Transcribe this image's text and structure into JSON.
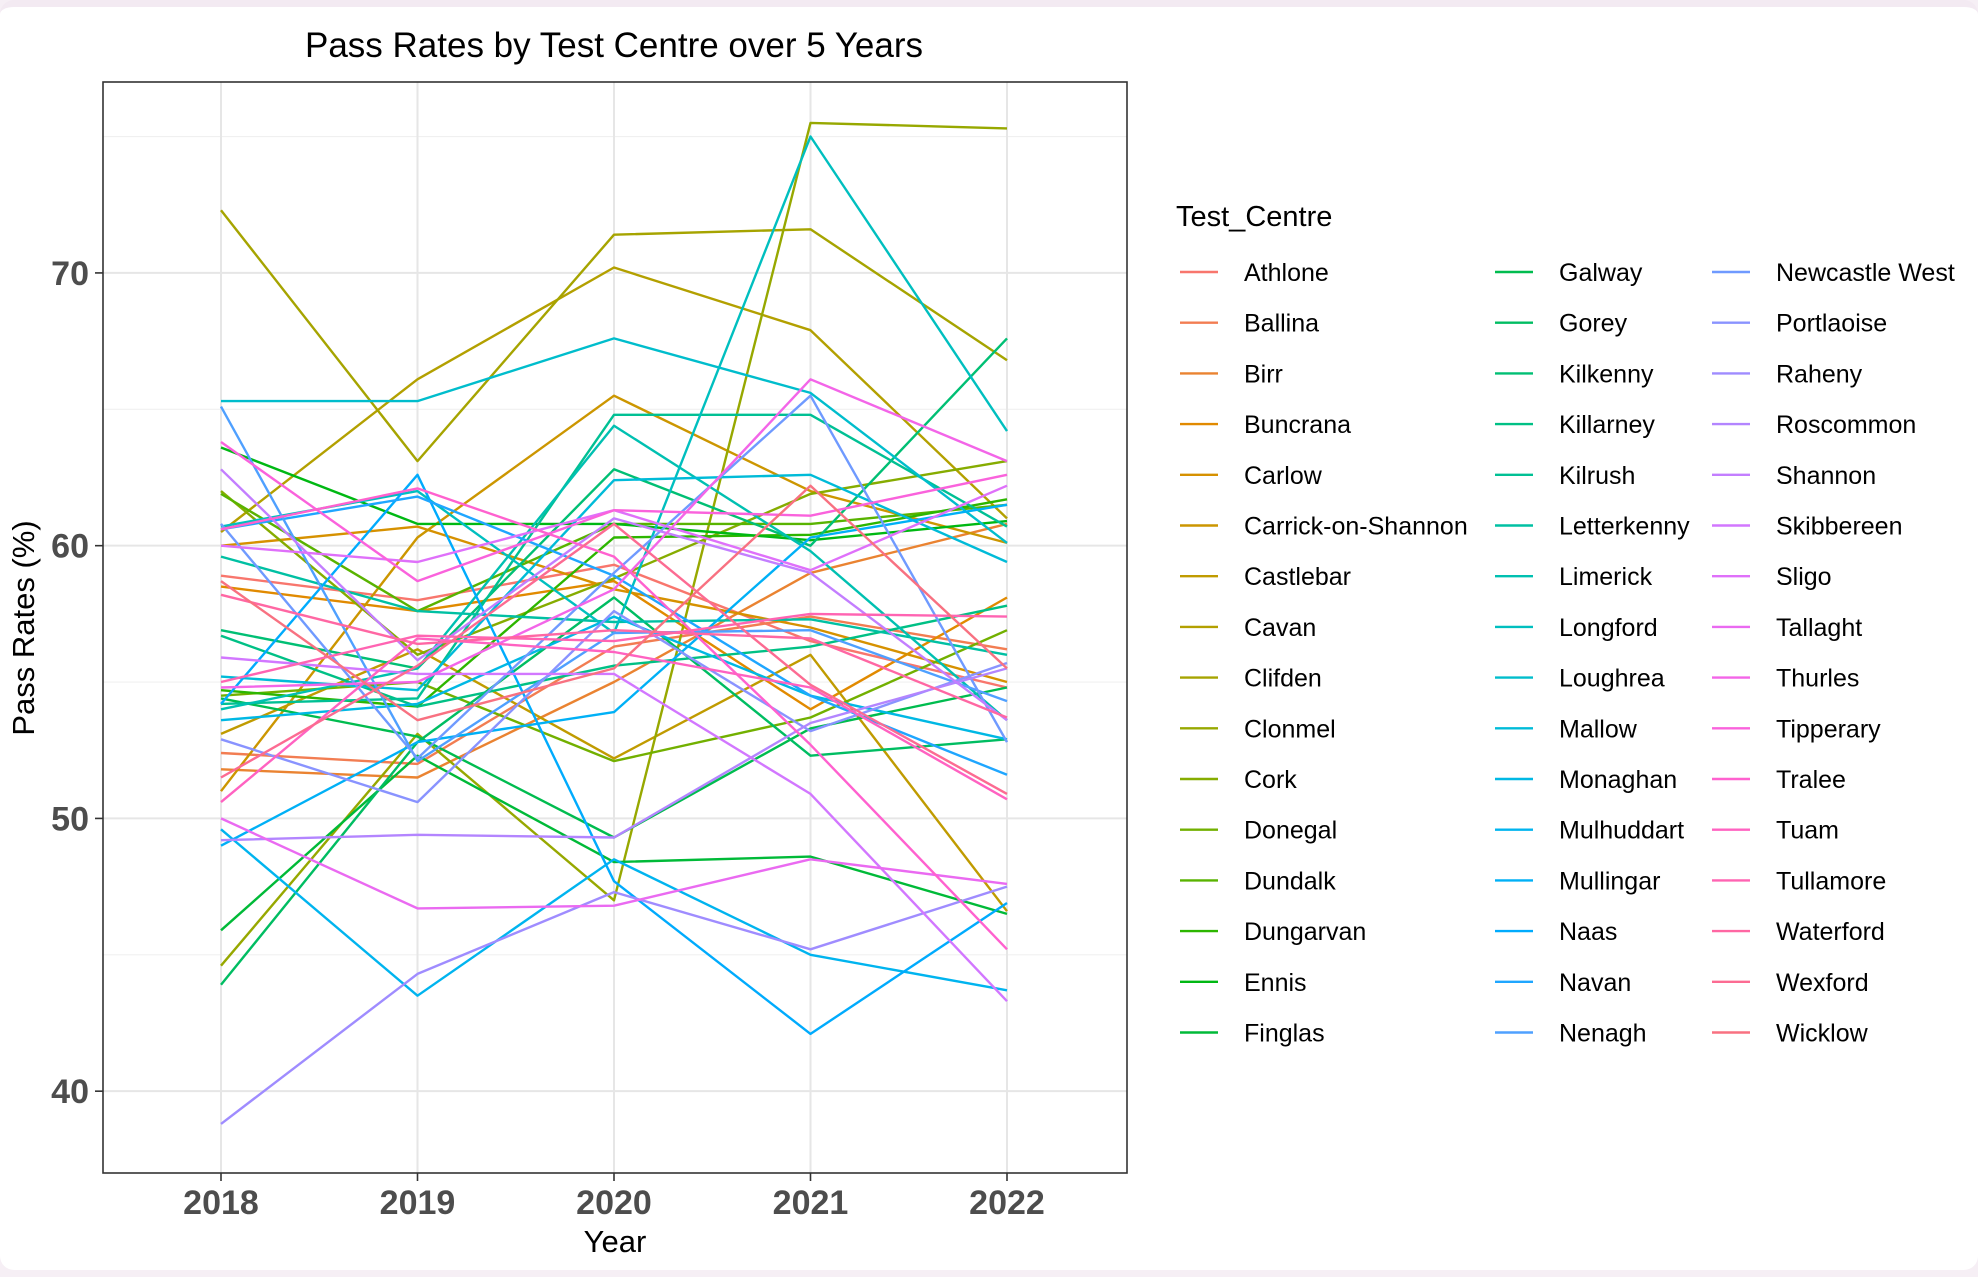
{
  "chart_data": {
    "type": "line",
    "title": "Pass Rates by Test Centre over 5 Years",
    "xlabel": "Year",
    "ylabel": "Pass Rates (%)",
    "x": [
      "2018",
      "2019",
      "2020",
      "2021",
      "2022"
    ],
    "ylim": [
      37,
      77
    ],
    "yticks": [
      40,
      50,
      60,
      70
    ],
    "grid": true,
    "legend_title": "Test_Centre",
    "legend_position": "right",
    "series": [
      {
        "name": "Athlone",
        "color": "#F8766D",
        "values": [
          58.9,
          58.0,
          59.3,
          56.5,
          54.8
        ]
      },
      {
        "name": "Ballina",
        "color": "#F27D52",
        "values": [
          52.4,
          52.0,
          56.3,
          57.4,
          56.2
        ]
      },
      {
        "name": "Birr",
        "color": "#EA8331",
        "values": [
          51.8,
          51.5,
          55.0,
          59.0,
          60.8
        ]
      },
      {
        "name": "Buncrana",
        "color": "#E18A00",
        "values": [
          58.5,
          57.6,
          58.7,
          54.0,
          58.1
        ]
      },
      {
        "name": "Carlow",
        "color": "#D69100",
        "values": [
          60.0,
          60.7,
          58.4,
          57.0,
          55.0
        ]
      },
      {
        "name": "Carrick-on-Shannon",
        "color": "#CC9600",
        "values": [
          51.0,
          60.3,
          65.5,
          62.0,
          60.1
        ]
      },
      {
        "name": "Castlebar",
        "color": "#C09B00",
        "values": [
          53.1,
          56.2,
          52.2,
          56.0,
          46.6
        ]
      },
      {
        "name": "Cavan",
        "color": "#B3A000",
        "values": [
          60.5,
          66.1,
          70.2,
          67.9,
          61.0
        ]
      },
      {
        "name": "Clifden",
        "color": "#A6A400",
        "values": [
          72.3,
          63.1,
          71.4,
          71.6,
          66.8
        ]
      },
      {
        "name": "Clonmel",
        "color": "#97A800",
        "values": [
          44.6,
          53.1,
          47.0,
          75.5,
          75.3
        ]
      },
      {
        "name": "Cork",
        "color": "#86AC00",
        "values": [
          62.0,
          56.0,
          58.8,
          61.9,
          63.1
        ]
      },
      {
        "name": "Donegal",
        "color": "#72B000",
        "values": [
          54.5,
          55.0,
          52.1,
          53.7,
          56.9
        ]
      },
      {
        "name": "Dundalk",
        "color": "#59B300",
        "values": [
          61.9,
          57.6,
          60.8,
          60.8,
          61.5
        ]
      },
      {
        "name": "Dungarvan",
        "color": "#2DB600",
        "values": [
          54.7,
          54.1,
          60.3,
          60.4,
          61.7
        ]
      },
      {
        "name": "Ennis",
        "color": "#00B813",
        "values": [
          63.6,
          60.8,
          60.8,
          60.2,
          60.9
        ]
      },
      {
        "name": "Finglas",
        "color": "#00BA38",
        "values": [
          45.9,
          52.3,
          48.4,
          48.6,
          46.5
        ]
      },
      {
        "name": "Galway",
        "color": "#00BC4F",
        "values": [
          54.4,
          53.0,
          49.3,
          53.3,
          54.8
        ]
      },
      {
        "name": "Gorey",
        "color": "#00BD62",
        "values": [
          43.9,
          52.8,
          58.1,
          52.3,
          52.9
        ]
      },
      {
        "name": "Kilkenny",
        "color": "#00BF74",
        "values": [
          56.9,
          55.5,
          62.8,
          60.0,
          67.6
        ]
      },
      {
        "name": "Killarney",
        "color": "#00C085",
        "values": [
          56.7,
          54.1,
          55.6,
          56.3,
          57.8
        ]
      },
      {
        "name": "Kilrush",
        "color": "#00C094",
        "values": [
          54.2,
          54.4,
          64.8,
          64.8,
          60.7
        ]
      },
      {
        "name": "Letterkenny",
        "color": "#00C0A3",
        "values": [
          59.6,
          57.6,
          57.2,
          57.3,
          56.0
        ]
      },
      {
        "name": "Limerick",
        "color": "#00C0B1",
        "values": [
          54.0,
          55.5,
          64.4,
          59.8,
          53.6
        ]
      },
      {
        "name": "Longford",
        "color": "#00BFBF",
        "values": [
          60.7,
          62.0,
          56.8,
          75.0,
          64.2
        ]
      },
      {
        "name": "Loughrea",
        "color": "#00BDCC",
        "values": [
          65.3,
          65.3,
          67.6,
          65.6,
          60.1
        ]
      },
      {
        "name": "Mallow",
        "color": "#00BBD8",
        "values": [
          55.2,
          54.7,
          62.4,
          62.6,
          59.4
        ]
      },
      {
        "name": "Monaghan",
        "color": "#00B8E4",
        "values": [
          53.6,
          54.2,
          57.4,
          54.5,
          52.9
        ]
      },
      {
        "name": "Mulhuddart",
        "color": "#00B4EF",
        "values": [
          49.6,
          43.5,
          48.5,
          45.0,
          43.7
        ]
      },
      {
        "name": "Mullingar",
        "color": "#00B0F6",
        "values": [
          49.0,
          52.8,
          53.9,
          60.3,
          61.5
        ]
      },
      {
        "name": "Naas",
        "color": "#00ABFD",
        "values": [
          54.2,
          62.6,
          47.7,
          42.1,
          46.9
        ]
      },
      {
        "name": "Navan",
        "color": "#1FA6FF",
        "values": [
          60.6,
          61.8,
          58.9,
          54.5,
          51.6
        ]
      },
      {
        "name": "Nenagh",
        "color": "#4FA0FF",
        "values": [
          65.1,
          52.1,
          56.8,
          56.9,
          54.3
        ]
      },
      {
        "name": "Newcastle West",
        "color": "#6F9AFF",
        "values": [
          60.8,
          52.2,
          59.0,
          65.5,
          52.8
        ]
      },
      {
        "name": "Portlaoise",
        "color": "#8993FF",
        "values": [
          52.9,
          50.6,
          57.6,
          53.2,
          55.7
        ]
      },
      {
        "name": "Raheny",
        "color": "#9F8CFF",
        "values": [
          38.8,
          44.3,
          47.3,
          45.2,
          47.5
        ]
      },
      {
        "name": "Roscommon",
        "color": "#B385FF",
        "values": [
          49.2,
          49.4,
          49.3,
          53.5,
          55.5
        ]
      },
      {
        "name": "Shannon",
        "color": "#C37EFF",
        "values": [
          62.8,
          55.8,
          61.0,
          59.0,
          53.6
        ]
      },
      {
        "name": "Skibbereen",
        "color": "#D277FF",
        "values": [
          55.9,
          55.3,
          55.3,
          50.9,
          43.3
        ]
      },
      {
        "name": "Sligo",
        "color": "#DF70FA",
        "values": [
          60.0,
          59.4,
          61.3,
          59.1,
          62.2
        ]
      },
      {
        "name": "Tallaght",
        "color": "#EA6AF1",
        "values": [
          50.0,
          46.7,
          46.8,
          48.5,
          47.6
        ]
      },
      {
        "name": "Thurles",
        "color": "#F365E8",
        "values": [
          54.8,
          55.0,
          58.4,
          66.1,
          63.1
        ]
      },
      {
        "name": "Tipperary",
        "color": "#FA62DC",
        "values": [
          63.8,
          58.7,
          61.3,
          61.1,
          62.6
        ]
      },
      {
        "name": "Tralee",
        "color": "#FF61CF",
        "values": [
          60.6,
          62.1,
          59.6,
          52.7,
          45.2
        ]
      },
      {
        "name": "Tuam",
        "color": "#FF62C1",
        "values": [
          50.6,
          56.6,
          56.1,
          54.8,
          50.7
        ]
      },
      {
        "name": "Tullamore",
        "color": "#FF64B2",
        "values": [
          55.0,
          56.7,
          56.5,
          57.5,
          57.4
        ]
      },
      {
        "name": "Waterford",
        "color": "#FF67A3",
        "values": [
          58.2,
          56.4,
          56.9,
          56.6,
          53.7
        ]
      },
      {
        "name": "Wexford",
        "color": "#FC6B92",
        "values": [
          51.5,
          55.6,
          60.8,
          54.9,
          50.9
        ]
      },
      {
        "name": "Wicklow",
        "color": "#F87181",
        "values": [
          58.7,
          53.6,
          55.5,
          62.2,
          55.5
        ]
      }
    ]
  }
}
